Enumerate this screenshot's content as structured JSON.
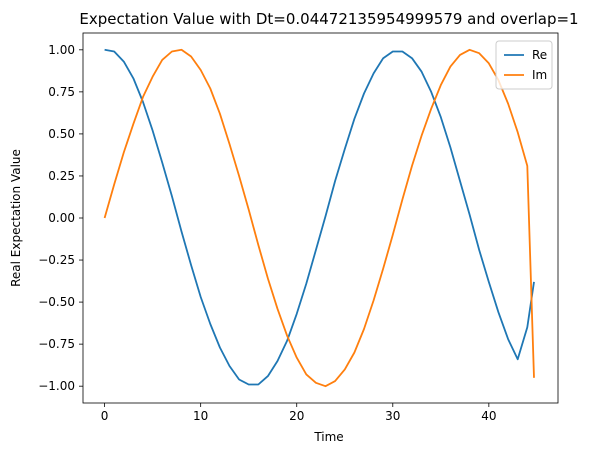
{
  "chart_data": {
    "type": "line",
    "title": "Expectation Value with Dt=0.04472135954999579 and overlap=1",
    "xlabel": "Time",
    "ylabel": "Real Expectation Value",
    "xlim": [
      -2.25,
      47.2
    ],
    "ylim": [
      -1.1,
      1.1
    ],
    "xticks": [
      0,
      10,
      20,
      30,
      40
    ],
    "yticks": [
      -1.0,
      -0.75,
      -0.5,
      -0.25,
      0.0,
      0.25,
      0.5,
      0.75,
      1.0
    ],
    "ytick_labels": [
      "−1.00",
      "−0.75",
      "−0.50",
      "−0.25",
      "0.00",
      "0.25",
      "0.50",
      "0.75",
      "1.00"
    ],
    "grid": false,
    "legend_position": "top-right",
    "series": [
      {
        "name": "Re",
        "color": "#1f77b4",
        "x": [
          0,
          1,
          2,
          3,
          4,
          5,
          6,
          7,
          8,
          9,
          10,
          11,
          12,
          13,
          14,
          15,
          16,
          17,
          18,
          19,
          20,
          21,
          22,
          23,
          24,
          25,
          26,
          27,
          28,
          29,
          30,
          31,
          32,
          33,
          34,
          35,
          36,
          37,
          38,
          39,
          40,
          41,
          42,
          43,
          44,
          44.7
        ],
        "y": [
          1.0,
          0.99,
          0.93,
          0.83,
          0.69,
          0.52,
          0.33,
          0.13,
          -0.08,
          -0.28,
          -0.47,
          -0.63,
          -0.77,
          -0.88,
          -0.96,
          -0.99,
          -0.99,
          -0.94,
          -0.85,
          -0.73,
          -0.57,
          -0.39,
          -0.19,
          0.01,
          0.22,
          0.41,
          0.59,
          0.74,
          0.86,
          0.95,
          0.99,
          0.99,
          0.95,
          0.87,
          0.75,
          0.6,
          0.42,
          0.22,
          0.02,
          -0.19,
          -0.38,
          -0.56,
          -0.72,
          -0.84,
          -0.65,
          -0.38
        ]
      },
      {
        "name": "Im",
        "color": "#ff7f0e",
        "x": [
          0,
          1,
          2,
          3,
          4,
          5,
          6,
          7,
          8,
          9,
          10,
          11,
          12,
          13,
          14,
          15,
          16,
          17,
          18,
          19,
          20,
          21,
          22,
          23,
          24,
          25,
          26,
          27,
          28,
          29,
          30,
          31,
          32,
          33,
          34,
          35,
          36,
          37,
          38,
          39,
          40,
          41,
          42,
          43,
          44,
          44.7
        ],
        "y": [
          0.0,
          0.2,
          0.39,
          0.56,
          0.72,
          0.84,
          0.94,
          0.99,
          1.0,
          0.96,
          0.88,
          0.77,
          0.62,
          0.44,
          0.25,
          0.05,
          -0.16,
          -0.36,
          -0.54,
          -0.7,
          -0.83,
          -0.93,
          -0.98,
          -1.0,
          -0.97,
          -0.9,
          -0.8,
          -0.66,
          -0.49,
          -0.3,
          -0.1,
          0.11,
          0.31,
          0.49,
          0.65,
          0.79,
          0.9,
          0.97,
          1.0,
          0.98,
          0.92,
          0.82,
          0.68,
          0.51,
          0.31,
          -0.95
        ]
      }
    ]
  }
}
